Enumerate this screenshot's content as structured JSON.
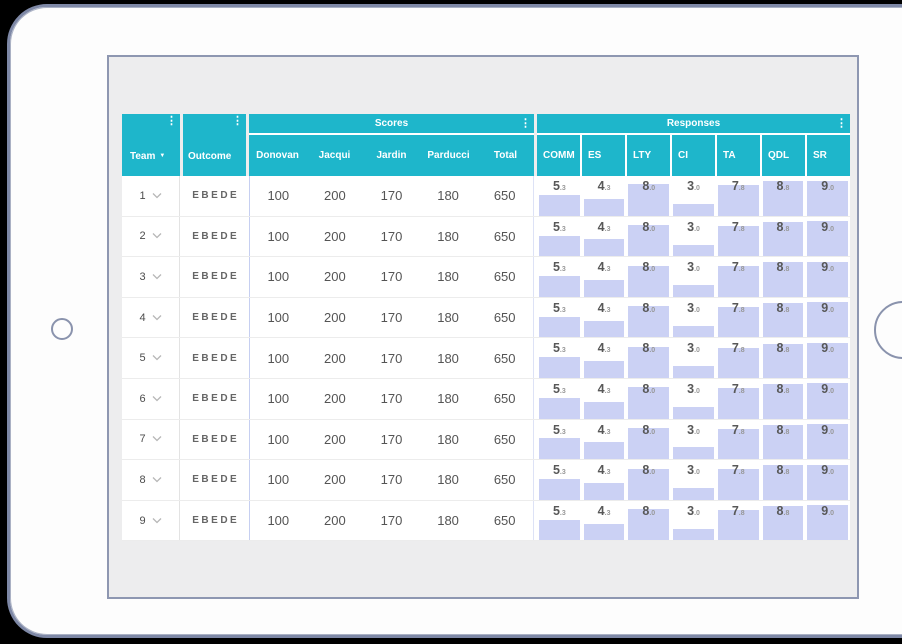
{
  "device": {
    "type": "tablet-mockup",
    "buttons": [
      "left-round-button",
      "right-home-button"
    ]
  },
  "colors": {
    "header_teal": "#1eb6cb",
    "data_bar": "#cbd1f4",
    "frame_border": "#7e88a6",
    "screen_background": "#ededee"
  },
  "icons": {
    "column_menu": "kebab-menu-icon",
    "team_sort": "sort-descending-triangle",
    "row_expand": "chevron-down-icon"
  },
  "table": {
    "header": {
      "team": {
        "label": "Team",
        "sort_indicator": "▼",
        "menu_icon": "⋮"
      },
      "outcome": {
        "label": "Outcome",
        "menu_icon": "⋮"
      },
      "scores": {
        "label": "Scores",
        "menu_icon": "⋮",
        "columns": [
          "Donovan",
          "Jacqui",
          "Jardin",
          "Parducci",
          "Total"
        ]
      },
      "responses": {
        "label": "Responses",
        "menu_icon": "⋮",
        "columns": [
          "COMM",
          "ES",
          "LTY",
          "CI",
          "TA",
          "QDL",
          "SR"
        ]
      }
    },
    "response_scale_max": 10,
    "rows": [
      {
        "team": "1",
        "outcome": "EBEDE",
        "scores": [
          "100",
          "200",
          "170",
          "180",
          "650"
        ],
        "responses": [
          5.3,
          4.3,
          8.0,
          3.0,
          7.8,
          8.8,
          9.0
        ]
      },
      {
        "team": "2",
        "outcome": "EBEDE",
        "scores": [
          "100",
          "200",
          "170",
          "180",
          "650"
        ],
        "responses": [
          5.3,
          4.3,
          8.0,
          3.0,
          7.8,
          8.8,
          9.0
        ]
      },
      {
        "team": "3",
        "outcome": "EBEDE",
        "scores": [
          "100",
          "200",
          "170",
          "180",
          "650"
        ],
        "responses": [
          5.3,
          4.3,
          8.0,
          3.0,
          7.8,
          8.8,
          9.0
        ]
      },
      {
        "team": "4",
        "outcome": "EBEDE",
        "scores": [
          "100",
          "200",
          "170",
          "180",
          "650"
        ],
        "responses": [
          5.3,
          4.3,
          8.0,
          3.0,
          7.8,
          8.8,
          9.0
        ]
      },
      {
        "team": "5",
        "outcome": "EBEDE",
        "scores": [
          "100",
          "200",
          "170",
          "180",
          "650"
        ],
        "responses": [
          5.3,
          4.3,
          8.0,
          3.0,
          7.8,
          8.8,
          9.0
        ]
      },
      {
        "team": "6",
        "outcome": "EBEDE",
        "scores": [
          "100",
          "200",
          "170",
          "180",
          "650"
        ],
        "responses": [
          5.3,
          4.3,
          8.0,
          3.0,
          7.8,
          8.8,
          9.0
        ]
      },
      {
        "team": "7",
        "outcome": "EBEDE",
        "scores": [
          "100",
          "200",
          "170",
          "180",
          "650"
        ],
        "responses": [
          5.3,
          4.3,
          8.0,
          3.0,
          7.8,
          8.8,
          9.0
        ]
      },
      {
        "team": "8",
        "outcome": "EBEDE",
        "scores": [
          "100",
          "200",
          "170",
          "180",
          "650"
        ],
        "responses": [
          5.3,
          4.3,
          8.0,
          3.0,
          7.8,
          8.8,
          9.0
        ]
      },
      {
        "team": "9",
        "outcome": "EBEDE",
        "scores": [
          "100",
          "200",
          "170",
          "180",
          "650"
        ],
        "responses": [
          5.3,
          4.3,
          8.0,
          3.0,
          7.8,
          8.8,
          9.0
        ]
      }
    ]
  }
}
